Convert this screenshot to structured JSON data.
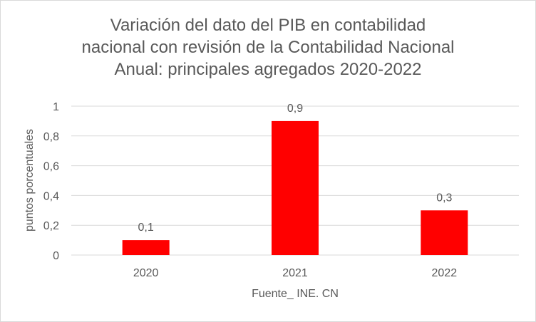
{
  "chart_data": {
    "type": "bar",
    "title_lines": [
      "Variación del dato del PIB en contabilidad",
      "nacional con revisión de la Contabilidad Nacional",
      "Anual: principales agregados 2020-2022"
    ],
    "categories": [
      "2020",
      "2021",
      "2022"
    ],
    "values": [
      0.1,
      0.9,
      0.3
    ],
    "data_labels": [
      "0,1",
      "0,9",
      "0,3"
    ],
    "xlabel": "Fuente_ INE. CN",
    "ylabel": "puntos porcentuales",
    "ylim": [
      0,
      1
    ],
    "yticks": [
      0,
      0.2,
      0.4,
      0.6,
      0.8,
      1
    ],
    "ytick_labels": [
      "0",
      "0,2",
      "0,4",
      "0,6",
      "0,8",
      "1"
    ],
    "grid": true,
    "bar_color": "#ff0000",
    "legend": "none"
  }
}
